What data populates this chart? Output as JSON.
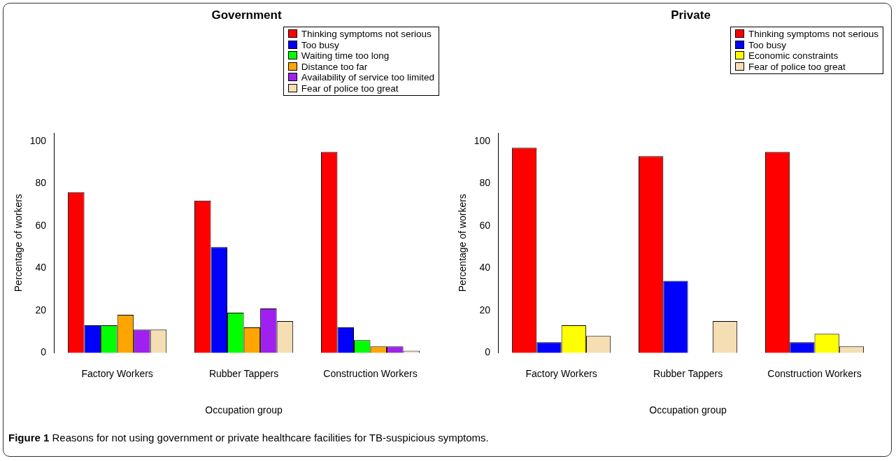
{
  "chart_data": [
    {
      "type": "bar",
      "title": "Government",
      "xlabel": "Occupation group",
      "ylabel": "Percentage of workers",
      "categories": [
        "Factory Workers",
        "Rubber Tappers",
        "Construction Workers"
      ],
      "series": [
        {
          "name": "Thinking symptoms not serious",
          "color": "#ff0000",
          "values": [
            76,
            72,
            95
          ]
        },
        {
          "name": "Too busy",
          "color": "#0000ff",
          "values": [
            13,
            50,
            12
          ]
        },
        {
          "name": "Waiting time too long",
          "color": "#00ff00",
          "values": [
            13,
            19,
            6
          ]
        },
        {
          "name": "Distance too far",
          "color": "#ffa500",
          "values": [
            18,
            12,
            3
          ]
        },
        {
          "name": "Availability of service too limited",
          "color": "#a020f0",
          "values": [
            11,
            21,
            3
          ]
        },
        {
          "name": "Fear of police too great",
          "color": "#f5deb3",
          "values": [
            11,
            15,
            1
          ]
        }
      ],
      "ylim": [
        0,
        104
      ],
      "yticks": [
        0,
        20,
        40,
        60,
        80,
        100
      ],
      "grid": false,
      "legend": "top right",
      "annotations": [
        "Figure 1 Reasons for not using government or private healthcare facilities for TB-suspicious symptoms."
      ]
    },
    {
      "type": "bar",
      "title": "Private",
      "xlabel": "Occupation group",
      "ylabel": "Percentage of workers",
      "categories": [
        "Factory Workers",
        "Rubber Tappers",
        "Construction Workers"
      ],
      "series": [
        {
          "name": "Thinking symptoms not serious",
          "color": "#ff0000",
          "values": [
            97,
            93,
            95
          ]
        },
        {
          "name": "Too busy",
          "color": "#0000ff",
          "values": [
            5,
            34,
            5
          ]
        },
        {
          "name": "Economic constraints",
          "color": "#ffff00",
          "values": [
            13,
            0,
            9
          ]
        },
        {
          "name": "Fear of police too great",
          "color": "#f5deb3",
          "values": [
            8,
            15,
            3
          ]
        }
      ],
      "ylim": [
        0,
        104
      ],
      "yticks": [
        0,
        20,
        40,
        60,
        80,
        100
      ],
      "grid": false,
      "legend": "top right"
    }
  ]
}
